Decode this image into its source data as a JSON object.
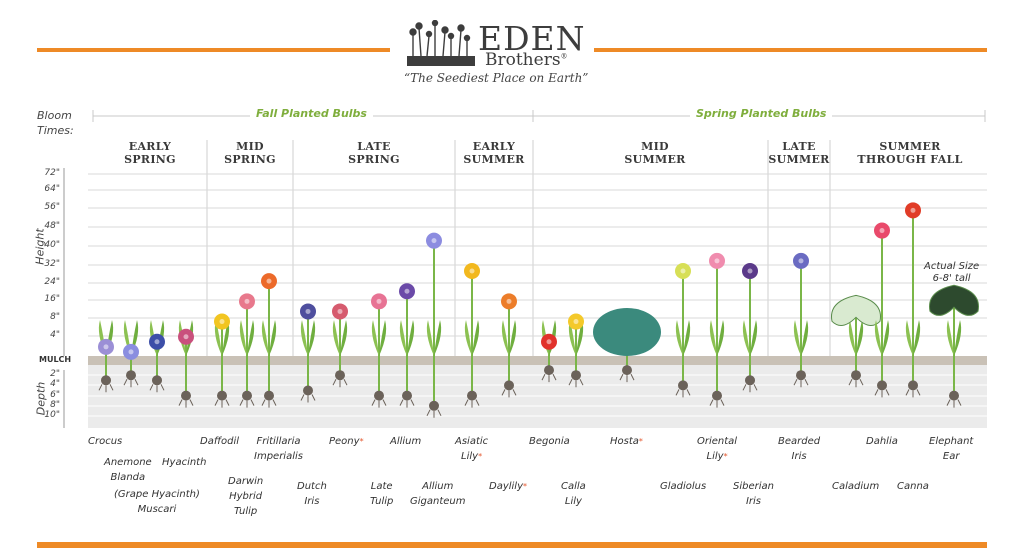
{
  "brand": {
    "name": "EDEN",
    "name2": "Brothers",
    "reg": "®",
    "tagline": "“The Seediest Place on Earth”"
  },
  "axis": {
    "bloom_times": "Bloom",
    "bloom_times2": "Times:",
    "height_title": "Height",
    "depth_title": "Depth",
    "mulch": "MULCH",
    "height_ticks": [
      "72\"",
      "64\"",
      "56\"",
      "48\"",
      "40\"",
      "32\"",
      "24\"",
      "16\"",
      "8\"",
      "4\""
    ],
    "depth_ticks": [
      "2\"",
      "4\"",
      "6\"",
      "8\"",
      "10\""
    ]
  },
  "groups": [
    {
      "label": "Fall Planted Bulbs"
    },
    {
      "label": "Spring Planted Bulbs"
    }
  ],
  "seasons": [
    {
      "l1": "EARLY",
      "l2": "SPRING"
    },
    {
      "l1": "MID",
      "l2": "SPRING"
    },
    {
      "l1": "LATE",
      "l2": "SPRING"
    },
    {
      "l1": "EARLY",
      "l2": "SUMMER"
    },
    {
      "l1": "MID",
      "l2": "SUMMER"
    },
    {
      "l1": "LATE",
      "l2": "SUMMER"
    },
    {
      "l1": "SUMMER",
      "l2": "THROUGH FALL"
    }
  ],
  "plants": [
    {
      "name": "Crocus",
      "height_in": 6,
      "depth_in": 3,
      "color": "#9b8fd6"
    },
    {
      "name": "Anemone Blanda",
      "height_in": 4,
      "depth_in": 2,
      "color": "#8a8ee0"
    },
    {
      "name": "(Grape Hyacinth) Muscari",
      "height_in": 8,
      "depth_in": 3,
      "color": "#3d4fa8"
    },
    {
      "name": "Hyacinth",
      "height_in": 10,
      "depth_in": 6,
      "color": "#c9507d"
    },
    {
      "name": "Daffodil",
      "height_in": 16,
      "depth_in": 6,
      "color": "#f2c521"
    },
    {
      "name": "Darwin Hybrid Tulip",
      "height_in": 24,
      "depth_in": 6,
      "color": "#e8788c"
    },
    {
      "name": "Fritillaria Imperialis",
      "height_in": 32,
      "depth_in": 6,
      "color": "#ec6a2a"
    },
    {
      "name": "Dutch Iris",
      "height_in": 20,
      "depth_in": 5,
      "color": "#4e4e9e"
    },
    {
      "name": "Peony",
      "height_in": 20,
      "depth_in": 2,
      "color": "#d65b6e"
    },
    {
      "name": "Late Tulip",
      "height_in": 24,
      "depth_in": 6,
      "color": "#e77394"
    },
    {
      "name": "Allium",
      "height_in": 28,
      "depth_in": 6,
      "color": "#6b4aa8"
    },
    {
      "name": "Allium Giganteum",
      "height_in": 48,
      "depth_in": 8,
      "color": "#8c8ce0"
    },
    {
      "name": "Asiatic Lily",
      "height_in": 36,
      "depth_in": 6,
      "color": "#f2b81e"
    },
    {
      "name": "Daylily",
      "height_in": 24,
      "depth_in": 4,
      "color": "#ec7d2a"
    },
    {
      "name": "Begonia",
      "height_in": 8,
      "depth_in": 1,
      "color": "#e1322b"
    },
    {
      "name": "Calla Lily",
      "height_in": 16,
      "depth_in": 2,
      "color": "#f4c92a"
    },
    {
      "name": "Hosta",
      "height_in": 16,
      "depth_in": 1,
      "color": "#3b8a7d"
    },
    {
      "name": "Gladiolus",
      "height_in": 36,
      "depth_in": 4,
      "color": "#d7df56"
    },
    {
      "name": "Oriental Lily",
      "height_in": 40,
      "depth_in": 6,
      "color": "#f08cae"
    },
    {
      "name": "Siberian Iris",
      "height_in": 36,
      "depth_in": 3,
      "color": "#5b3a8a"
    },
    {
      "name": "Bearded Iris",
      "height_in": 40,
      "depth_in": 2,
      "color": "#6a6bc2"
    },
    {
      "name": "Caladium",
      "height_in": 24,
      "depth_in": 2,
      "color": "#d9ead0"
    },
    {
      "name": "Dahlia",
      "height_in": 52,
      "depth_in": 4,
      "color": "#e94a6b"
    },
    {
      "name": "Canna",
      "height_in": 60,
      "depth_in": 4,
      "color": "#e13c27"
    },
    {
      "name": "Elephant Ear",
      "height_in": 28,
      "depth_in": 6,
      "color": "#2d4a2e"
    }
  ],
  "labels": {
    "crocus": "Crocus",
    "anemone1": "Anemone",
    "anemone2": "Blanda",
    "muscari1": "(Grape Hyacinth)",
    "muscari2": "Muscari",
    "hyacinth": "Hyacinth",
    "daffodil": "Daffodil",
    "darwin1": "Darwin",
    "darwin2": "Hybrid",
    "darwin3": "Tulip",
    "frit1": "Fritillaria",
    "frit2": "Imperialis",
    "dutch1": "Dutch",
    "dutch2": "Iris",
    "peony": "Peony",
    "late1": "Late",
    "late2": "Tulip",
    "allium": "Allium",
    "giganteum1": "Allium",
    "giganteum2": "Giganteum",
    "asiatic1": "Asiatic",
    "asiatic2": "Lily",
    "daylily": "Daylily",
    "begonia": "Begonia",
    "calla1": "Calla",
    "calla2": "Lily",
    "hosta": "Hosta",
    "gladiolus": "Gladiolus",
    "oriental1": "Oriental",
    "oriental2": "Lily",
    "siberian1": "Siberian",
    "siberian2": "Iris",
    "bearded1": "Bearded",
    "bearded2": "Iris",
    "caladium": "Caladium",
    "dahlia": "Dahlia",
    "canna": "Canna",
    "elephant1": "Elephant",
    "elephant2": "Ear",
    "asterisk": "*"
  },
  "note": {
    "l1": "Actual Size",
    "l2": "6-8' tall"
  }
}
